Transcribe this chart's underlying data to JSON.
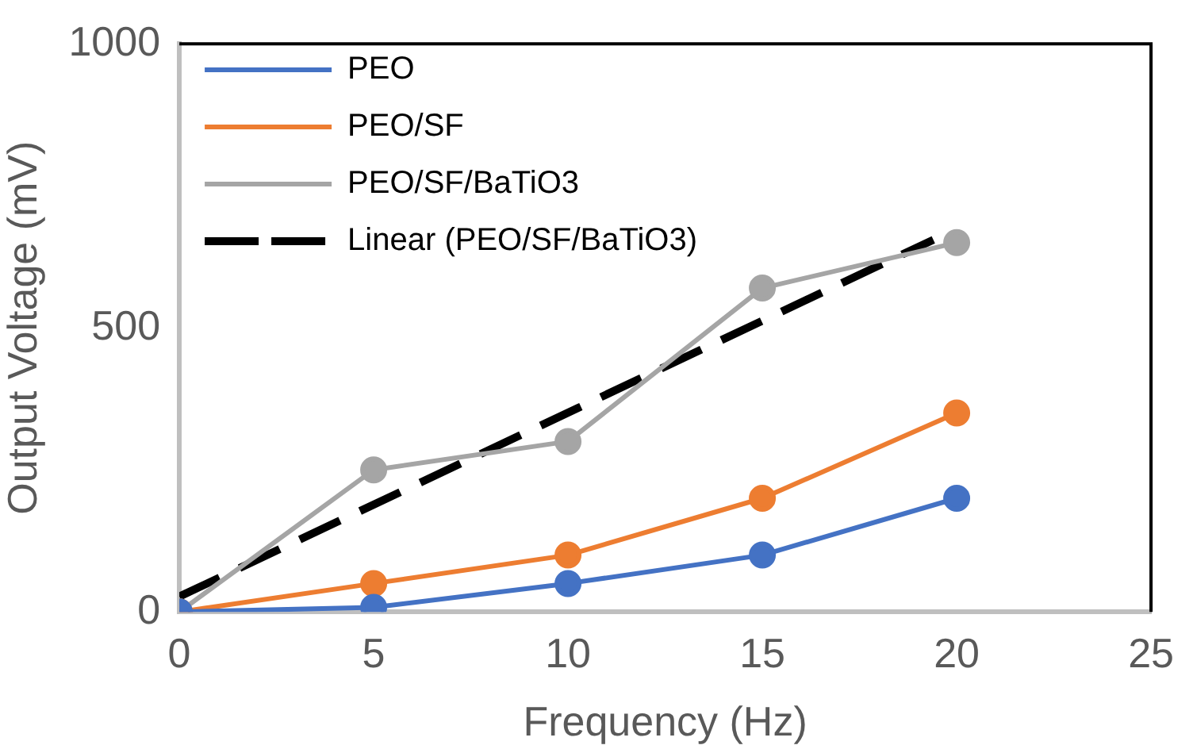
{
  "chart_data": {
    "type": "line",
    "xlabel": "Frequency (Hz)",
    "ylabel": "Output Voltage (mV)",
    "x": [
      0,
      5,
      10,
      15,
      20
    ],
    "xlim": [
      0,
      25
    ],
    "xticks": [
      0,
      5,
      10,
      15,
      20,
      25
    ],
    "ylim": [
      0,
      1000
    ],
    "yticks": [
      0,
      500,
      1000
    ],
    "grid": false,
    "legend": "top left",
    "marker": "circle",
    "series": [
      {
        "name": "PEO",
        "color": "#4472c4",
        "values": [
          0,
          8,
          50,
          100,
          200
        ]
      },
      {
        "name": "PEO/SF",
        "color": "#ed7d31",
        "values": [
          0,
          50,
          100,
          200,
          350
        ]
      },
      {
        "name": "PEO/SF/BaTiO3",
        "color": "#a5a5a5",
        "values": [
          0,
          250,
          300,
          570,
          650
        ]
      },
      {
        "name": "Linear (PEO/SF/BaTiO3)",
        "color": "#000000",
        "type": "line",
        "marker": "none",
        "line_style": "dashed",
        "x": [
          0,
          19.4
        ],
        "values": [
          27,
          655
        ]
      }
    ]
  }
}
